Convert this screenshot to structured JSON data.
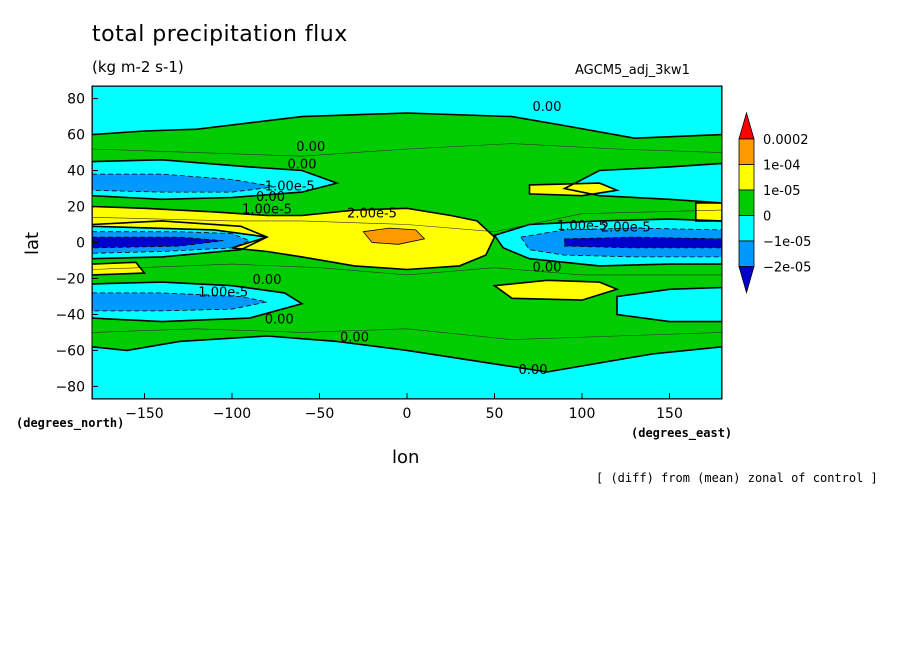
{
  "title": "total precipitation flux",
  "units": "(kg m-2 s-1)",
  "run_name": "AGCM5_adj_3kw1",
  "x_unit": "(degrees_east)",
  "y_unit": "(degrees_north)",
  "note": "[ (diff) from (mean) zonal of control ]",
  "chart_data": {
    "type": "heatmap",
    "xlabel": "lon",
    "ylabel": "lat",
    "xlim": [
      -180,
      180
    ],
    "ylim": [
      -87,
      87
    ],
    "x_ticks": [
      -150,
      -100,
      -50,
      0,
      50,
      100,
      150
    ],
    "y_ticks": [
      80,
      60,
      40,
      20,
      0,
      -20,
      -40,
      -60,
      -80
    ],
    "x_tick_labels": [
      "-150",
      "-100",
      "-50",
      "0",
      "50",
      "100",
      "150"
    ],
    "y_tick_labels": [
      "80",
      "60",
      "40",
      "20",
      "0",
      "-20",
      "-40",
      "-60",
      "-80"
    ],
    "colorbar": {
      "levels": [
        "0.0002",
        "1e-04",
        "1e-05",
        "0",
        "-1e-05",
        "-2e-05"
      ],
      "colors": [
        "#ff0000",
        "#ff9900",
        "#ffff00",
        "#00cc00",
        "#00ffff",
        "#0099ff",
        "#0000cc"
      ]
    },
    "contour_labels": [
      {
        "text": "0.00",
        "lon": 80,
        "lat": 73
      },
      {
        "text": "0.00",
        "lon": -55,
        "lat": 51
      },
      {
        "text": "0.00",
        "lon": -60,
        "lat": 41
      },
      {
        "text": "1.00e-5",
        "lon": -67,
        "lat": 29
      },
      {
        "text": "0.00",
        "lon": -78,
        "lat": 23
      },
      {
        "text": "1.00e-5",
        "lon": -80,
        "lat": 16
      },
      {
        "text": "2.00e-5",
        "lon": -20,
        "lat": 14
      },
      {
        "text": "1.00e-5",
        "lon": 100,
        "lat": 7
      },
      {
        "text": "2.00e-5",
        "lon": 125,
        "lat": 6
      },
      {
        "text": "0.00",
        "lon": 80,
        "lat": -16
      },
      {
        "text": "0.00",
        "lon": -80,
        "lat": -23
      },
      {
        "text": "1.00e-5",
        "lon": -105,
        "lat": -30
      },
      {
        "text": "0.00",
        "lon": -73,
        "lat": -45
      },
      {
        "text": "0.00",
        "lon": -30,
        "lat": -55
      },
      {
        "text": "0.00",
        "lon": 72,
        "lat": -73
      }
    ]
  }
}
